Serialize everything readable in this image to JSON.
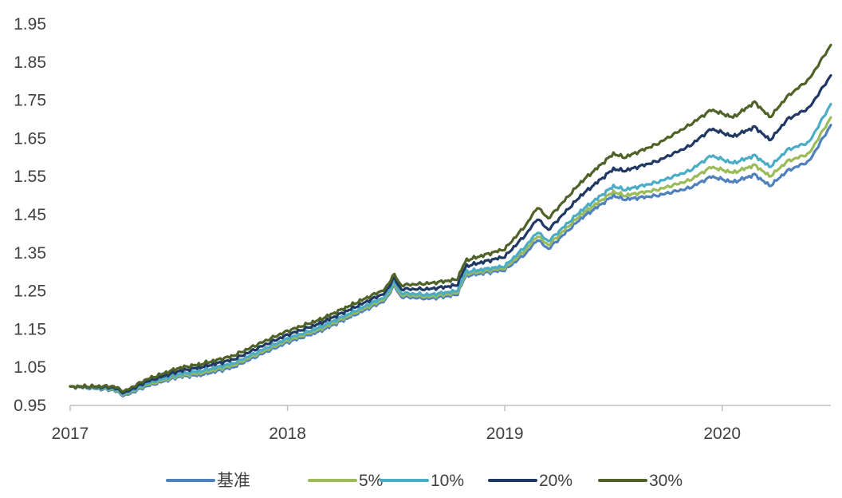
{
  "chart_data": {
    "type": "line",
    "title": "",
    "xlabel": "",
    "ylabel": "",
    "xlim": [
      2017.0,
      2020.5
    ],
    "ylim": [
      0.95,
      1.95
    ],
    "y_ticks": [
      "0.95",
      "1.05",
      "1.15",
      "1.25",
      "1.35",
      "1.45",
      "1.55",
      "1.65",
      "1.75",
      "1.85",
      "1.95"
    ],
    "x_ticks": [
      "2017",
      "2018",
      "2019",
      "2020"
    ],
    "grid": false,
    "legend_position": "bottom",
    "series": [
      {
        "name": "基准",
        "color": "#4f81bd",
        "points": [
          [
            2017.0,
            1.0
          ],
          [
            2017.1,
            0.995
          ],
          [
            2017.2,
            0.99
          ],
          [
            2017.25,
            0.975
          ],
          [
            2017.35,
            1.0
          ],
          [
            2017.5,
            1.025
          ],
          [
            2017.6,
            1.03
          ],
          [
            2017.75,
            1.05
          ],
          [
            2017.9,
            1.09
          ],
          [
            2018.0,
            1.115
          ],
          [
            2018.15,
            1.145
          ],
          [
            2018.3,
            1.185
          ],
          [
            2018.45,
            1.225
          ],
          [
            2018.49,
            1.265
          ],
          [
            2018.52,
            1.235
          ],
          [
            2018.65,
            1.23
          ],
          [
            2018.78,
            1.24
          ],
          [
            2018.82,
            1.29
          ],
          [
            2019.0,
            1.305
          ],
          [
            2019.1,
            1.35
          ],
          [
            2019.15,
            1.385
          ],
          [
            2019.2,
            1.36
          ],
          [
            2019.35,
            1.44
          ],
          [
            2019.5,
            1.5
          ],
          [
            2019.55,
            1.49
          ],
          [
            2019.7,
            1.5
          ],
          [
            2019.85,
            1.52
          ],
          [
            2019.95,
            1.55
          ],
          [
            2020.05,
            1.535
          ],
          [
            2020.15,
            1.555
          ],
          [
            2020.22,
            1.525
          ],
          [
            2020.3,
            1.565
          ],
          [
            2020.4,
            1.59
          ],
          [
            2020.5,
            1.685
          ]
        ]
      },
      {
        "name": "5%",
        "color": "#9bbb59",
        "points": [
          [
            2017.0,
            1.0
          ],
          [
            2017.1,
            0.997
          ],
          [
            2017.2,
            0.992
          ],
          [
            2017.25,
            0.978
          ],
          [
            2017.35,
            1.004
          ],
          [
            2017.5,
            1.028
          ],
          [
            2017.6,
            1.035
          ],
          [
            2017.75,
            1.055
          ],
          [
            2017.9,
            1.095
          ],
          [
            2018.0,
            1.12
          ],
          [
            2018.15,
            1.15
          ],
          [
            2018.3,
            1.19
          ],
          [
            2018.45,
            1.23
          ],
          [
            2018.49,
            1.27
          ],
          [
            2018.52,
            1.24
          ],
          [
            2018.65,
            1.235
          ],
          [
            2018.78,
            1.245
          ],
          [
            2018.82,
            1.295
          ],
          [
            2019.0,
            1.31
          ],
          [
            2019.1,
            1.36
          ],
          [
            2019.15,
            1.395
          ],
          [
            2019.2,
            1.37
          ],
          [
            2019.35,
            1.45
          ],
          [
            2019.5,
            1.51
          ],
          [
            2019.55,
            1.5
          ],
          [
            2019.7,
            1.515
          ],
          [
            2019.85,
            1.54
          ],
          [
            2019.95,
            1.575
          ],
          [
            2020.05,
            1.56
          ],
          [
            2020.15,
            1.58
          ],
          [
            2020.22,
            1.55
          ],
          [
            2020.3,
            1.59
          ],
          [
            2020.4,
            1.61
          ],
          [
            2020.5,
            1.705
          ]
        ]
      },
      {
        "name": "10%",
        "color": "#4bacc6",
        "points": [
          [
            2017.0,
            1.0
          ],
          [
            2017.1,
            0.998
          ],
          [
            2017.2,
            0.994
          ],
          [
            2017.25,
            0.98
          ],
          [
            2017.35,
            1.007
          ],
          [
            2017.5,
            1.032
          ],
          [
            2017.6,
            1.04
          ],
          [
            2017.75,
            1.06
          ],
          [
            2017.9,
            1.1
          ],
          [
            2018.0,
            1.125
          ],
          [
            2018.15,
            1.155
          ],
          [
            2018.3,
            1.195
          ],
          [
            2018.45,
            1.235
          ],
          [
            2018.49,
            1.275
          ],
          [
            2018.52,
            1.245
          ],
          [
            2018.65,
            1.24
          ],
          [
            2018.78,
            1.25
          ],
          [
            2018.82,
            1.3
          ],
          [
            2019.0,
            1.315
          ],
          [
            2019.1,
            1.37
          ],
          [
            2019.15,
            1.405
          ],
          [
            2019.2,
            1.38
          ],
          [
            2019.35,
            1.46
          ],
          [
            2019.5,
            1.525
          ],
          [
            2019.55,
            1.515
          ],
          [
            2019.7,
            1.535
          ],
          [
            2019.85,
            1.565
          ],
          [
            2019.95,
            1.605
          ],
          [
            2020.05,
            1.585
          ],
          [
            2020.15,
            1.605
          ],
          [
            2020.22,
            1.575
          ],
          [
            2020.3,
            1.62
          ],
          [
            2020.4,
            1.64
          ],
          [
            2020.5,
            1.74
          ]
        ]
      },
      {
        "name": "20%",
        "color": "#1f3864",
        "points": [
          [
            2017.0,
            1.0
          ],
          [
            2017.1,
            0.999
          ],
          [
            2017.2,
            0.997
          ],
          [
            2017.25,
            0.983
          ],
          [
            2017.35,
            1.012
          ],
          [
            2017.5,
            1.04
          ],
          [
            2017.6,
            1.05
          ],
          [
            2017.75,
            1.07
          ],
          [
            2017.9,
            1.11
          ],
          [
            2018.0,
            1.135
          ],
          [
            2018.15,
            1.165
          ],
          [
            2018.3,
            1.205
          ],
          [
            2018.45,
            1.245
          ],
          [
            2018.49,
            1.285
          ],
          [
            2018.52,
            1.255
          ],
          [
            2018.65,
            1.255
          ],
          [
            2018.78,
            1.265
          ],
          [
            2018.82,
            1.315
          ],
          [
            2019.0,
            1.34
          ],
          [
            2019.1,
            1.4
          ],
          [
            2019.15,
            1.44
          ],
          [
            2019.2,
            1.41
          ],
          [
            2019.35,
            1.5
          ],
          [
            2019.5,
            1.57
          ],
          [
            2019.55,
            1.565
          ],
          [
            2019.7,
            1.59
          ],
          [
            2019.85,
            1.63
          ],
          [
            2019.95,
            1.675
          ],
          [
            2020.05,
            1.655
          ],
          [
            2020.15,
            1.68
          ],
          [
            2020.22,
            1.645
          ],
          [
            2020.3,
            1.7
          ],
          [
            2020.4,
            1.73
          ],
          [
            2020.5,
            1.815
          ]
        ]
      },
      {
        "name": "30%",
        "color": "#4f6228",
        "points": [
          [
            2017.0,
            1.0
          ],
          [
            2017.1,
            1.0
          ],
          [
            2017.2,
            1.0
          ],
          [
            2017.25,
            0.987
          ],
          [
            2017.35,
            1.018
          ],
          [
            2017.5,
            1.048
          ],
          [
            2017.6,
            1.058
          ],
          [
            2017.75,
            1.08
          ],
          [
            2017.9,
            1.12
          ],
          [
            2018.0,
            1.145
          ],
          [
            2018.15,
            1.175
          ],
          [
            2018.3,
            1.215
          ],
          [
            2018.45,
            1.255
          ],
          [
            2018.49,
            1.295
          ],
          [
            2018.52,
            1.265
          ],
          [
            2018.65,
            1.27
          ],
          [
            2018.78,
            1.28
          ],
          [
            2018.82,
            1.33
          ],
          [
            2019.0,
            1.36
          ],
          [
            2019.1,
            1.425
          ],
          [
            2019.15,
            1.47
          ],
          [
            2019.2,
            1.44
          ],
          [
            2019.35,
            1.535
          ],
          [
            2019.5,
            1.61
          ],
          [
            2019.55,
            1.6
          ],
          [
            2019.7,
            1.635
          ],
          [
            2019.85,
            1.685
          ],
          [
            2019.95,
            1.725
          ],
          [
            2020.05,
            1.705
          ],
          [
            2020.15,
            1.745
          ],
          [
            2020.22,
            1.705
          ],
          [
            2020.3,
            1.76
          ],
          [
            2020.4,
            1.805
          ],
          [
            2020.5,
            1.895
          ]
        ]
      }
    ]
  }
}
